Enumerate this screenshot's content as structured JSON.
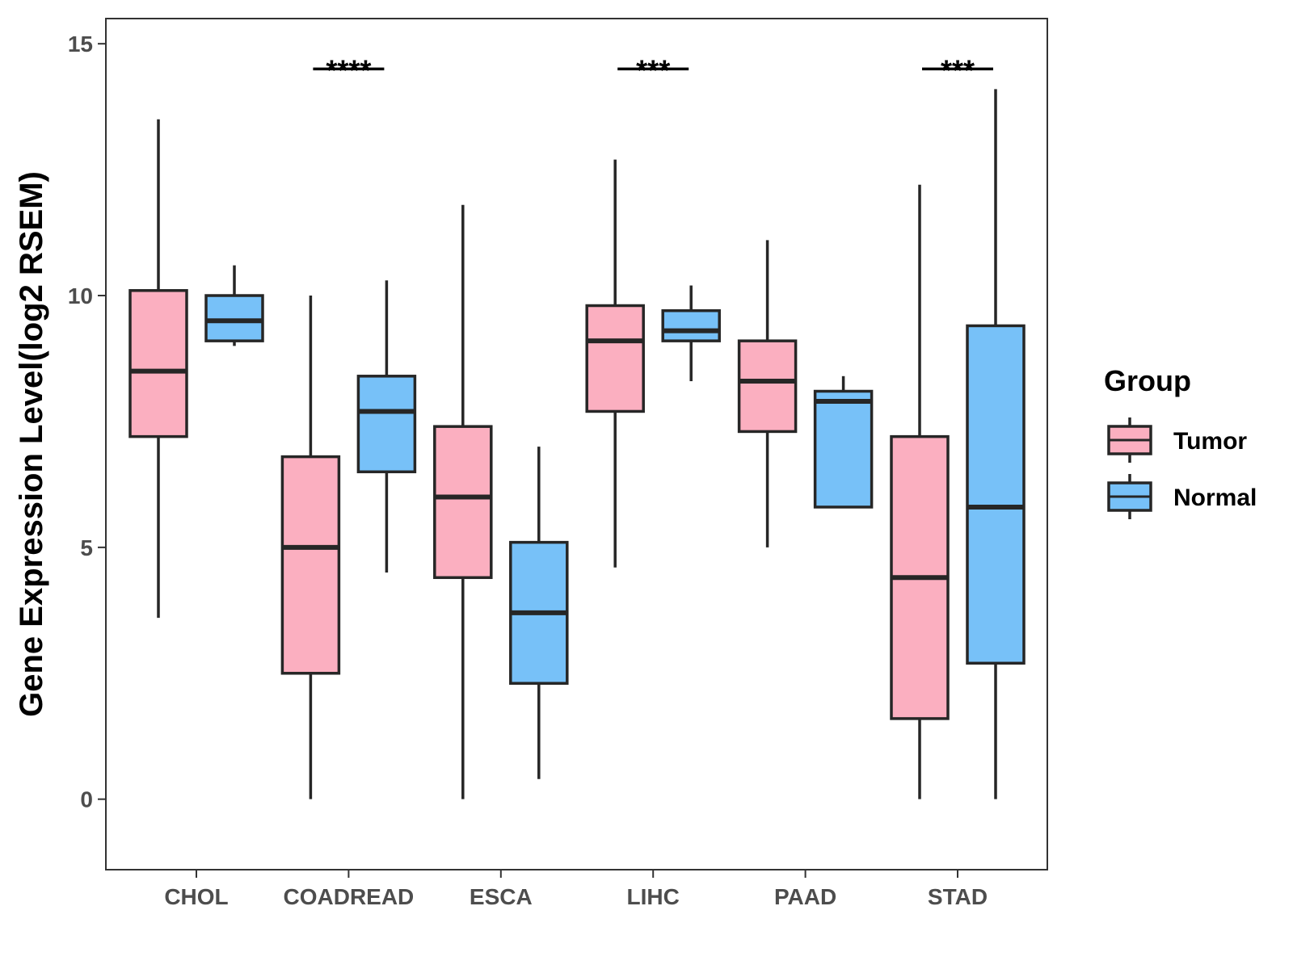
{
  "chart_data": {
    "type": "boxplot",
    "title": "",
    "xlabel": "",
    "ylabel": "Gene Expression Level(log2 RSEM)",
    "ylim": [
      -1.4,
      15.5
    ],
    "yticks": [
      0,
      5,
      10,
      15
    ],
    "ytick_labels": [
      "0",
      "5",
      "10",
      "15"
    ],
    "categories": [
      "CHOL",
      "COADREAD",
      "ESCA",
      "LIHC",
      "PAAD",
      "STAD"
    ],
    "legend": {
      "title": "Group",
      "position": "right",
      "entries": [
        "Tumor",
        "Normal"
      ]
    },
    "colors": {
      "Tumor": "#fbafc0",
      "Normal": "#77c1f8",
      "outline": "#262626",
      "panel_border": "#333333"
    },
    "series": [
      {
        "name": "Tumor",
        "boxes": [
          {
            "min": 3.6,
            "q1": 7.2,
            "median": 8.5,
            "q3": 10.1,
            "max": 13.5
          },
          {
            "min": 0.0,
            "q1": 2.5,
            "median": 5.0,
            "q3": 6.8,
            "max": 10.0
          },
          {
            "min": 0.0,
            "q1": 4.4,
            "median": 6.0,
            "q3": 7.4,
            "max": 11.8
          },
          {
            "min": 4.6,
            "q1": 7.7,
            "median": 9.1,
            "q3": 9.8,
            "max": 12.7
          },
          {
            "min": 5.0,
            "q1": 7.3,
            "median": 8.3,
            "q3": 9.1,
            "max": 11.1
          },
          {
            "min": 0.0,
            "q1": 1.6,
            "median": 4.4,
            "q3": 7.2,
            "max": 12.2
          }
        ]
      },
      {
        "name": "Normal",
        "boxes": [
          {
            "min": 9.0,
            "q1": 9.1,
            "median": 9.5,
            "q3": 10.0,
            "max": 10.6
          },
          {
            "min": 4.5,
            "q1": 6.5,
            "median": 7.7,
            "q3": 8.4,
            "max": 10.3
          },
          {
            "min": 0.4,
            "q1": 2.3,
            "median": 3.7,
            "q3": 5.1,
            "max": 7.0
          },
          {
            "min": 8.3,
            "q1": 9.1,
            "median": 9.3,
            "q3": 9.7,
            "max": 10.2
          },
          {
            "min": 5.8,
            "q1": 5.8,
            "median": 7.9,
            "q3": 8.1,
            "max": 8.4
          },
          {
            "min": 0.0,
            "q1": 2.7,
            "median": 5.8,
            "q3": 9.4,
            "max": 14.1
          }
        ]
      }
    ],
    "significance": [
      {
        "category": "COADREAD",
        "label": "****",
        "y": 14.5
      },
      {
        "category": "LIHC",
        "label": "***",
        "y": 14.5
      },
      {
        "category": "STAD",
        "label": "***",
        "y": 14.5
      }
    ]
  }
}
